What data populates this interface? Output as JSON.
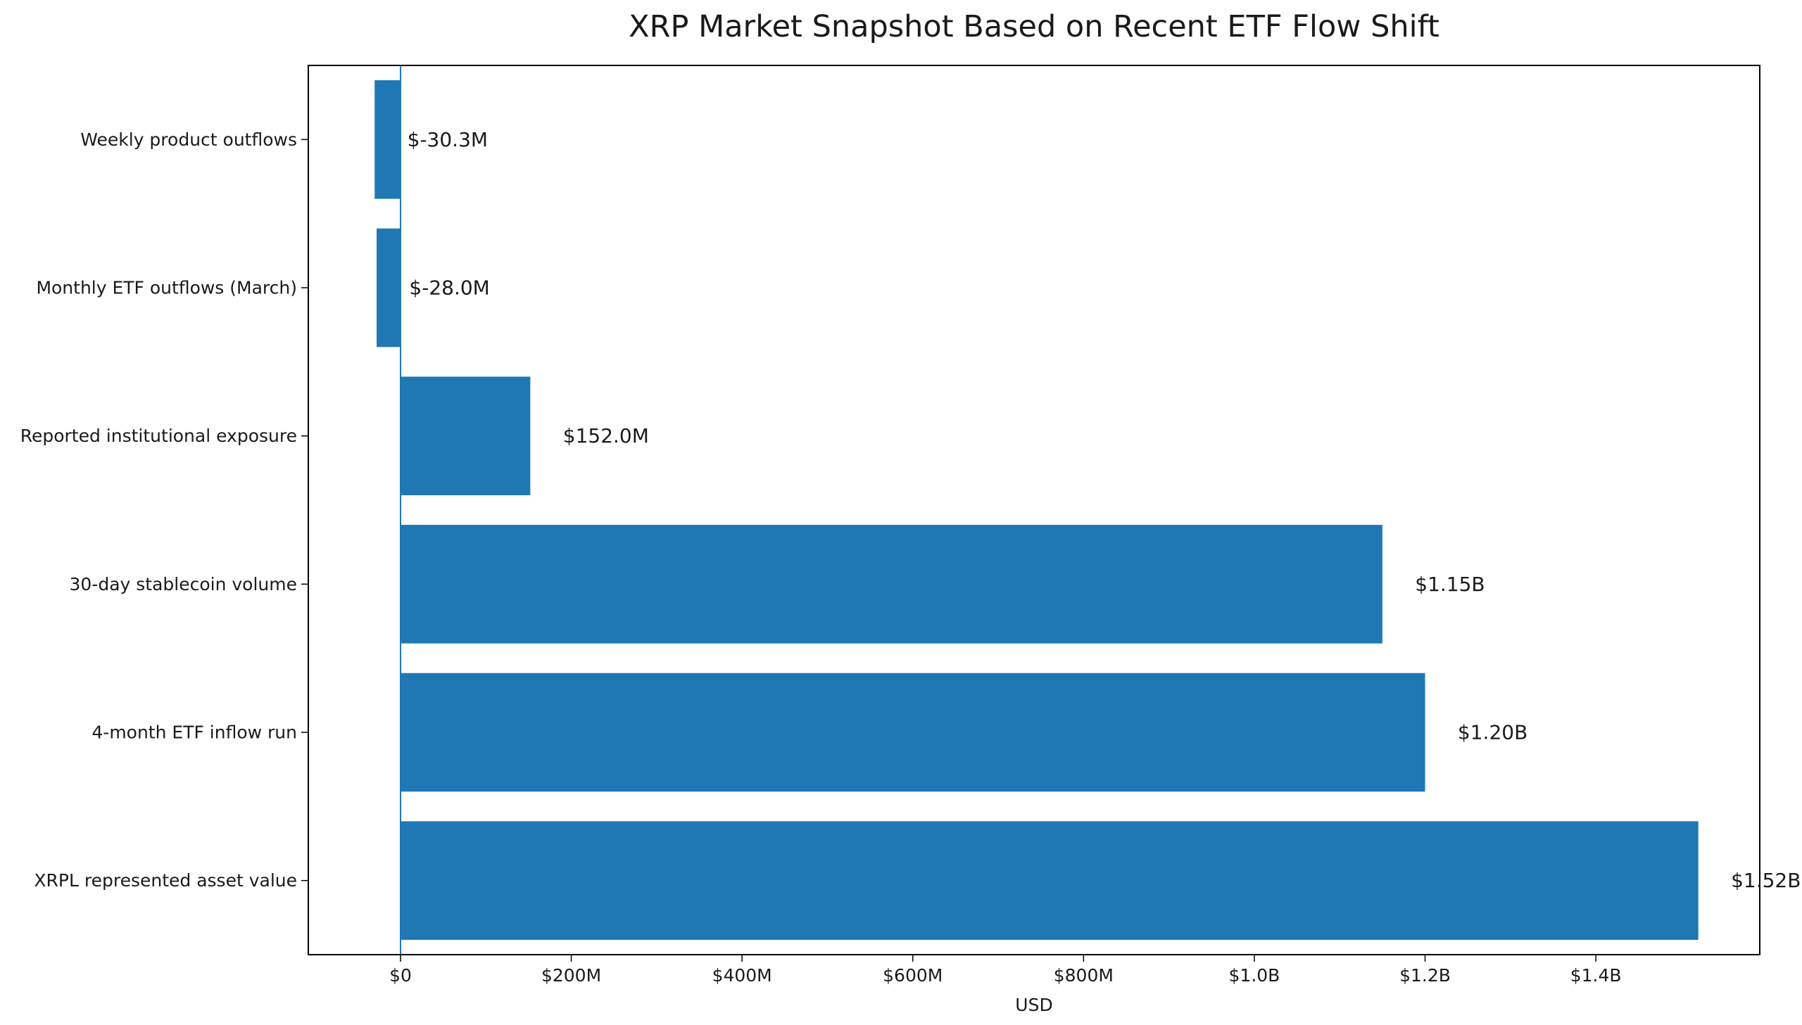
{
  "chart_data": {
    "type": "bar",
    "orientation": "horizontal",
    "title": "XRP Market Snapshot Based on Recent ETF Flow Shift",
    "xlabel": "USD",
    "ylabel": "",
    "xlim": [
      -108000000,
      1592000000
    ],
    "xticks": [
      {
        "value": 0,
        "label": "$0"
      },
      {
        "value": 200000000,
        "label": "$200M"
      },
      {
        "value": 400000000,
        "label": "$400M"
      },
      {
        "value": 600000000,
        "label": "$600M"
      },
      {
        "value": 800000000,
        "label": "$800M"
      },
      {
        "value": 1000000000,
        "label": "$1.0B"
      },
      {
        "value": 1200000000,
        "label": "$1.2B"
      },
      {
        "value": 1400000000,
        "label": "$1.4B"
      }
    ],
    "categories": [
      "Weekly product outflows",
      "Monthly ETF outflows (March)",
      "Reported institutional exposure",
      "30-day stablecoin volume",
      "4-month ETF inflow run",
      "XRPL represented asset value"
    ],
    "values": [
      -30300000,
      -28000000,
      152000000,
      1150000000,
      1200000000,
      1520000000
    ],
    "data_labels": [
      "$-30.3M",
      "$-28.0M",
      "$152.0M",
      "$1.15B",
      "$1.20B",
      "$1.52B"
    ],
    "bar_color": "#1f77b4",
    "zero_line": true,
    "grid": false
  }
}
